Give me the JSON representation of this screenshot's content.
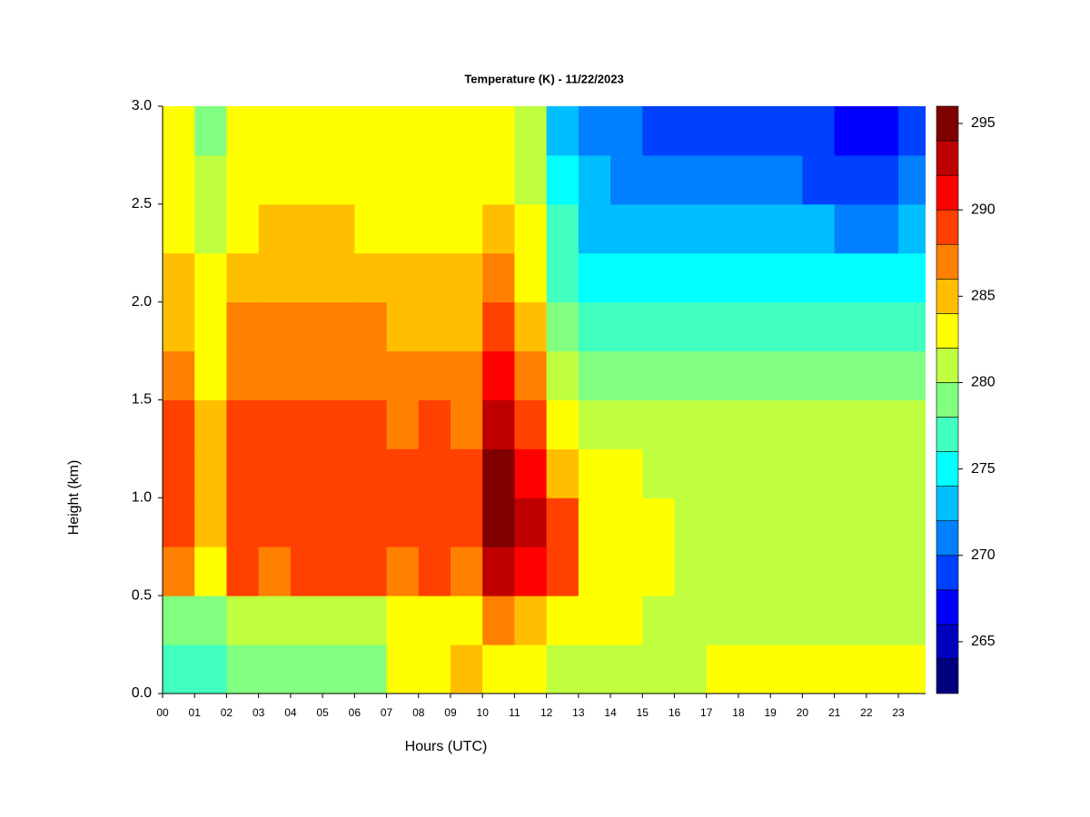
{
  "chart_data": {
    "type": "heatmap",
    "title": "Temperature (K) - 11/22/2023",
    "x_label": "Hours (UTC)",
    "y_label": "Height (km)",
    "x": [
      0.5,
      1.5,
      2.5,
      3.5,
      4.5,
      5.5,
      6.5,
      7.5,
      8.5,
      9.5,
      10.5,
      11.5,
      12.5,
      13.5,
      14.5,
      15.5,
      16.5,
      17.5,
      18.5,
      19.5,
      20.5,
      21.5,
      22.5,
      23.5
    ],
    "y": [
      0.125,
      0.375,
      0.625,
      0.875,
      1.125,
      1.375,
      1.625,
      1.875,
      2.125,
      2.375,
      2.625,
      2.875
    ],
    "z": [
      [
        277,
        279,
        286,
        288,
        288,
        288,
        287,
        285,
        284,
        283,
        282,
        282
      ],
      [
        277,
        279,
        283,
        284,
        284,
        284,
        283,
        282,
        282,
        281,
        280,
        279
      ],
      [
        279,
        280,
        288,
        289,
        289,
        289,
        287,
        286,
        284,
        283,
        283,
        282
      ],
      [
        279,
        280,
        287,
        288,
        289,
        288,
        287,
        286,
        285,
        284,
        283,
        283
      ],
      [
        278,
        280,
        288,
        288,
        288,
        288,
        287,
        286,
        285,
        284,
        283,
        283
      ],
      [
        279,
        280,
        288,
        289,
        289,
        288,
        287,
        286,
        285,
        284,
        283,
        283
      ],
      [
        279,
        281,
        288,
        289,
        289,
        288,
        287,
        286,
        284,
        283,
        283,
        282
      ],
      [
        282,
        282,
        287,
        288,
        289,
        287,
        286,
        285,
        284,
        283,
        283,
        282
      ],
      [
        283,
        282,
        288,
        289,
        289,
        288,
        286,
        285,
        284,
        283,
        283,
        282
      ],
      [
        284,
        283,
        287,
        288,
        288,
        287,
        286,
        285,
        284,
        283,
        283,
        282
      ],
      [
        283,
        287,
        293,
        295,
        295,
        293,
        291,
        288,
        286,
        284,
        283,
        283
      ],
      [
        283,
        285,
        291,
        292,
        291,
        289,
        286,
        284,
        283,
        282,
        281,
        280
      ],
      [
        281,
        282,
        289,
        289,
        285,
        282,
        280,
        279,
        277,
        276,
        274,
        272
      ],
      [
        281,
        282,
        283,
        283,
        282,
        281,
        279,
        277,
        275,
        273,
        272,
        271
      ],
      [
        281,
        282,
        283,
        283,
        282,
        280,
        279,
        277,
        275,
        273,
        271,
        270
      ],
      [
        281,
        281,
        282,
        282,
        281,
        280,
        279,
        277,
        275,
        273,
        271,
        269
      ],
      [
        281,
        281,
        281,
        281,
        281,
        280,
        279,
        277,
        275,
        272,
        270,
        269
      ],
      [
        282,
        281,
        281,
        281,
        281,
        280,
        279,
        277,
        275,
        272,
        270,
        268
      ],
      [
        282,
        281,
        281,
        281,
        281,
        280,
        279,
        277,
        275,
        272,
        270,
        268
      ],
      [
        282,
        281,
        281,
        281,
        281,
        280,
        279,
        277,
        275,
        272,
        270,
        268
      ],
      [
        282,
        281,
        281,
        281,
        281,
        280,
        279,
        277,
        275,
        272,
        269,
        268
      ],
      [
        282,
        281,
        281,
        281,
        281,
        280,
        279,
        277,
        274,
        271,
        269,
        267
      ],
      [
        282,
        281,
        281,
        281,
        281,
        280,
        279,
        277,
        274,
        271,
        269,
        267
      ],
      [
        283,
        281,
        281,
        281,
        281,
        280,
        279,
        277,
        275,
        272,
        270,
        268
      ]
    ],
    "xlim": [
      0,
      23.85
    ],
    "ylim": [
      0,
      3
    ],
    "xticks": [
      {
        "value": 0,
        "label": "00"
      },
      {
        "value": 1,
        "label": "01"
      },
      {
        "value": 2,
        "label": "02"
      },
      {
        "value": 3,
        "label": "03"
      },
      {
        "value": 4,
        "label": "04"
      },
      {
        "value": 5,
        "label": "05"
      },
      {
        "value": 6,
        "label": "06"
      },
      {
        "value": 7,
        "label": "07"
      },
      {
        "value": 8,
        "label": "08"
      },
      {
        "value": 9,
        "label": "09"
      },
      {
        "value": 10,
        "label": "10"
      },
      {
        "value": 11,
        "label": "11"
      },
      {
        "value": 12,
        "label": "12"
      },
      {
        "value": 13,
        "label": "13"
      },
      {
        "value": 14,
        "label": "14"
      },
      {
        "value": 15,
        "label": "15"
      },
      {
        "value": 16,
        "label": "16"
      },
      {
        "value": 17,
        "label": "17"
      },
      {
        "value": 18,
        "label": "18"
      },
      {
        "value": 19,
        "label": "19"
      },
      {
        "value": 20,
        "label": "20"
      },
      {
        "value": 21,
        "label": "21"
      },
      {
        "value": 22,
        "label": "22"
      },
      {
        "value": 23,
        "label": "23"
      }
    ],
    "yticks": [
      {
        "value": 0,
        "label": "0.0"
      },
      {
        "value": 0.5,
        "label": "0.5"
      },
      {
        "value": 1,
        "label": "1.0"
      },
      {
        "value": 1.5,
        "label": "1.5"
      },
      {
        "value": 2,
        "label": "2.0"
      },
      {
        "value": 2.5,
        "label": "2.5"
      },
      {
        "value": 3,
        "label": "3.0"
      }
    ],
    "levels": [
      262,
      264,
      266,
      268,
      270,
      272,
      274,
      276,
      278,
      280,
      282,
      284,
      286,
      288,
      290,
      292,
      294,
      296
    ],
    "colors": [
      "#00007f",
      "#0000bf",
      "#0000ff",
      "#0040ff",
      "#0080ff",
      "#00bfff",
      "#00ffff",
      "#40ffbf",
      "#80ff80",
      "#bfff40",
      "#ffff00",
      "#ffbf00",
      "#ff8000",
      "#ff4000",
      "#ff0000",
      "#bf0000",
      "#800000"
    ],
    "colorbar_ticks": [
      265,
      270,
      275,
      280,
      285,
      290,
      295
    ]
  }
}
